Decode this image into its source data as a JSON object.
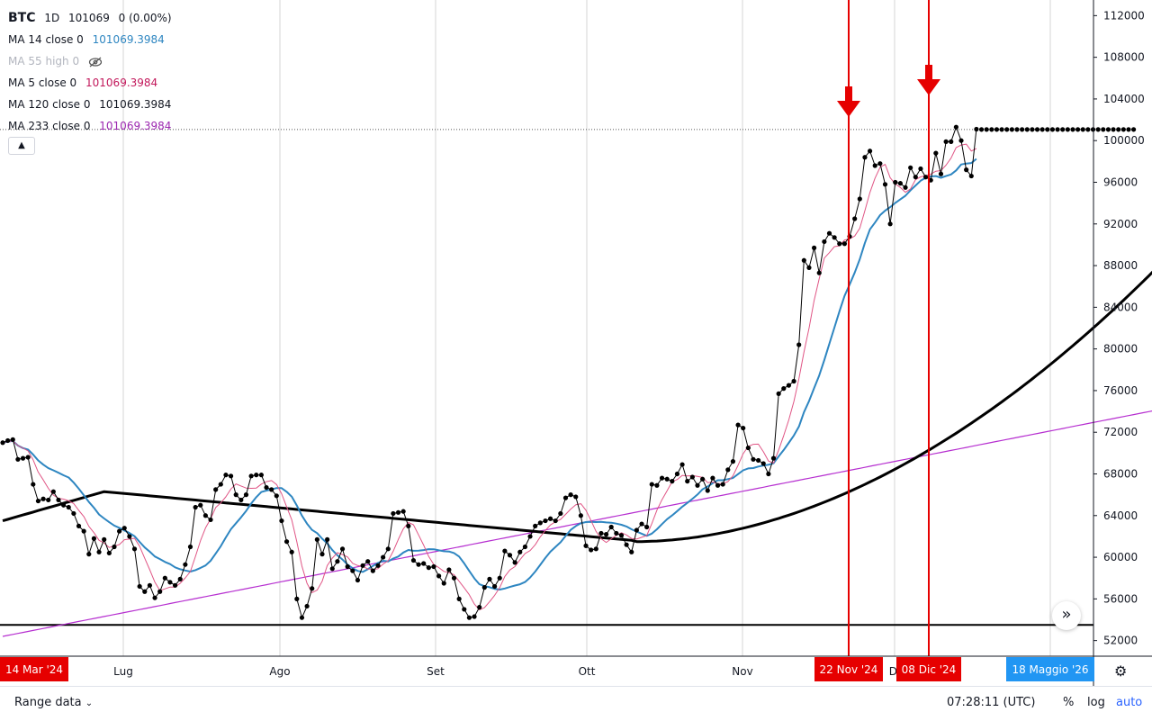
{
  "legend": {
    "symbol": "BTC",
    "interval": "1D",
    "price": "101069",
    "change": "0 (0.00%)",
    "ma_rows": [
      {
        "label": "MA 14 close 0",
        "value": "101069.3984",
        "color": "#2e86c1"
      },
      {
        "label": "MA 55 high 0",
        "value": "",
        "color": "#b2b5be"
      },
      {
        "label": "MA 5 close 0",
        "value": "101069.3984",
        "color": "#c2185b"
      },
      {
        "label": "MA 120 close 0",
        "value": "101069.3984",
        "color": "#131722"
      },
      {
        "label": "MA 233 close 0",
        "value": "101069.3984",
        "color": "#9c27b0"
      }
    ]
  },
  "colors": {
    "price": "#000000",
    "ma5": "#e05585",
    "ma14": "#2e86c1",
    "ma120": "#000000",
    "ma233": "#b62fd0",
    "marker": "#e60000",
    "axis_label_blue": "#2196f3"
  },
  "chart_data": {
    "type": "line",
    "y_axis_ticks": [
      52000,
      56000,
      60000,
      64000,
      68000,
      72000,
      76000,
      80000,
      84000,
      88000,
      92000,
      96000,
      100000,
      104000,
      108000,
      112000
    ],
    "ylim": [
      50500,
      113500
    ],
    "x_axis_labels": [
      "Lug",
      "Ago",
      "Set",
      "Ott",
      "Nov",
      "Di"
    ],
    "x_badges": [
      "14 Mar '24",
      "22 Nov '24",
      "08 Dic '24",
      "18 Maggio '26"
    ],
    "price_level": 101069,
    "support_level": 53500,
    "price_series": [
      71000,
      71200,
      71300,
      69400,
      69500,
      69600,
      67000,
      65400,
      65600,
      65500,
      66300,
      65500,
      65000,
      64800,
      64200,
      63000,
      62500,
      60300,
      61800,
      60500,
      61700,
      60400,
      61000,
      62500,
      62800,
      62000,
      60800,
      57200,
      56700,
      57300,
      56100,
      56700,
      58000,
      57600,
      57300,
      57900,
      59300,
      61000,
      64800,
      65000,
      64000,
      63600,
      66500,
      67000,
      67900,
      67800,
      66000,
      65500,
      66000,
      67800,
      67900,
      67900,
      66700,
      66500,
      65900,
      63500,
      61500,
      60500,
      56000,
      54200,
      55300,
      57000,
      61700,
      60300,
      61700,
      58900,
      59600,
      60800,
      59100,
      58700,
      57800,
      59200,
      59600,
      58700,
      59200,
      60000,
      60800,
      64200,
      64300,
      64400,
      63000,
      59700,
      59300,
      59400,
      59000,
      59100,
      58200,
      57500,
      58800,
      58000,
      56000,
      55000,
      54200,
      54300,
      55200,
      57100,
      57900,
      57200,
      58000,
      60600,
      60200,
      59500,
      60500,
      61000,
      62000,
      63000,
      63300,
      63500,
      63700,
      63500,
      64200,
      65700,
      66000,
      65800,
      64000,
      61100,
      60700,
      60800,
      62300,
      62200,
      62900,
      62300,
      62100,
      61200,
      60500,
      62600,
      63200,
      62900,
      67000,
      66900,
      67600,
      67500,
      67300,
      68000,
      68900,
      67300,
      67700,
      66900,
      67500,
      66400,
      67600,
      66900,
      67000,
      68400,
      69200,
      72700,
      72400,
      70500,
      69400,
      69300,
      69000,
      68000,
      69500,
      75700,
      76200,
      76500,
      76900,
      80400,
      88500,
      87800,
      89700,
      87300,
      90300,
      91100,
      90700,
      90100,
      90100,
      90800,
      92500,
      94400,
      98400,
      99000,
      97600,
      97800,
      95800,
      92000,
      96000,
      95900,
      95500,
      97400,
      96500,
      97300,
      96500,
      96200,
      98800,
      96800,
      99900,
      99900,
      101300,
      100000,
      97200,
      96600,
      101100
    ],
    "projection_points": 31,
    "annotations": {
      "arrow_1": "22 Nov '24",
      "arrow_2": "08 Dic '24"
    }
  },
  "bottom": {
    "range_label": "Range data",
    "clock": "07:28:11 (UTC)",
    "pct": "%",
    "log": "log",
    "auto": "auto"
  }
}
